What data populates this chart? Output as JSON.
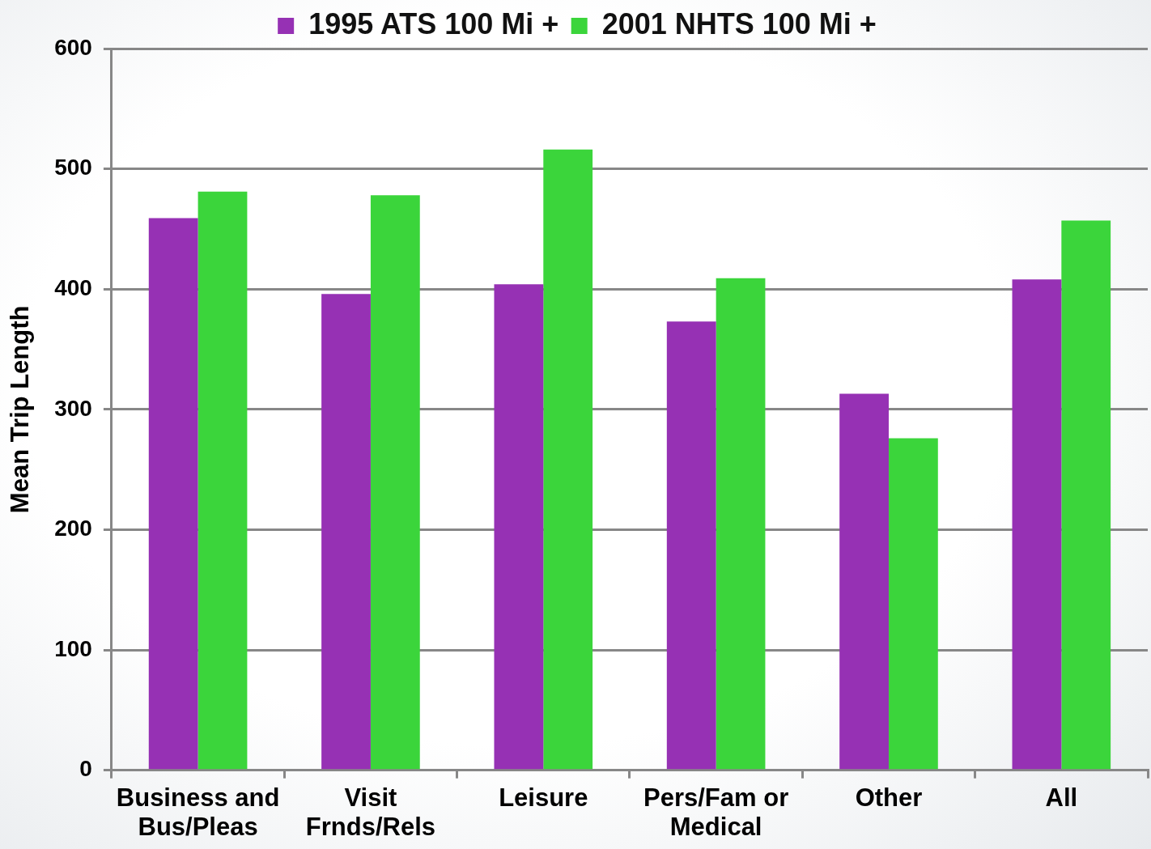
{
  "chart_data": {
    "type": "bar",
    "ylabel": "Mean Trip Length",
    "categories": [
      "Business and Bus/Pleas",
      "Visit Frnds/Rels",
      "Leisure",
      "Pers/Fam or Medical",
      "Other",
      "All"
    ],
    "series": [
      {
        "name": "1995 ATS 100 Mi +",
        "color": "#9631b4",
        "values": [
          459,
          396,
          404,
          373,
          313,
          408
        ]
      },
      {
        "name": "2001 NHTS 100 Mi +",
        "color": "#3bd53b",
        "values": [
          481,
          478,
          516,
          409,
          276,
          457
        ]
      }
    ],
    "ylim": [
      0,
      600
    ],
    "yticks": [
      0,
      100,
      200,
      300,
      400,
      500,
      600
    ],
    "grid": "y",
    "legend": "top"
  }
}
